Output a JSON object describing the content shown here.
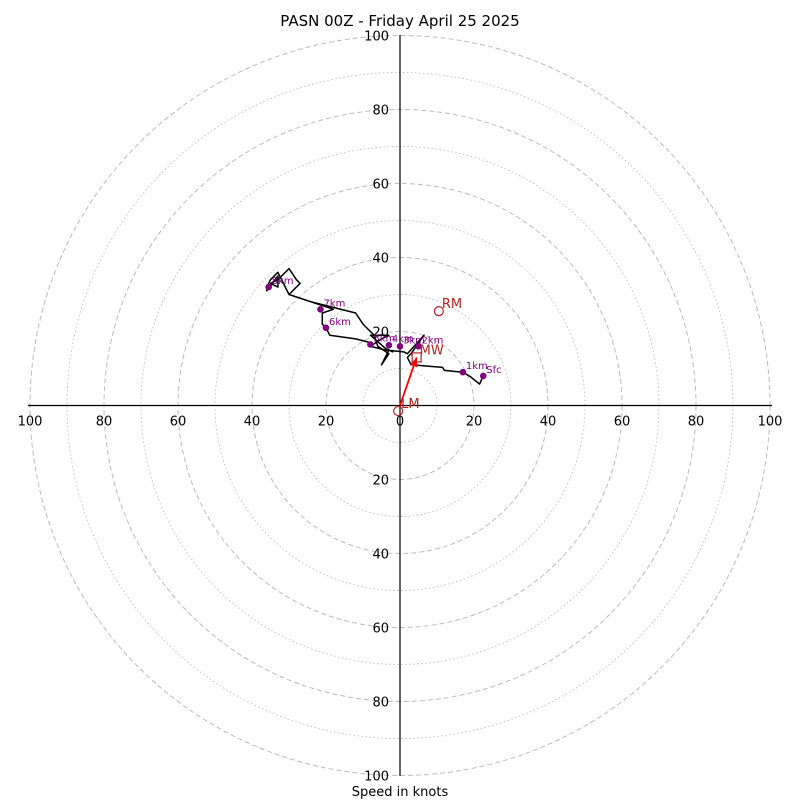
{
  "chart_data": {
    "type": "hodograph",
    "title": "PASN 00Z - Friday April 25 2025",
    "xlabel": "Speed in knots",
    "radius_max": 100,
    "ring_step_major": 20,
    "ring_step_minor": 10,
    "axis_ticks": {
      "right": [
        "20",
        "40",
        "60",
        "80",
        "100"
      ],
      "left": [
        "20",
        "40",
        "60",
        "80",
        "100"
      ],
      "top": [
        "20",
        "40",
        "60",
        "80",
        "100"
      ],
      "bottom": [
        "20",
        "40",
        "60",
        "80",
        "100"
      ],
      "origin": "0"
    },
    "colors": {
      "trace": "#000000",
      "height_marker": "#800080",
      "storm_motion": "#b22222",
      "mean_wind_vector": "#ff0000",
      "grid": "#bbbbbb"
    },
    "trace": [
      [
        22.5,
        8
      ],
      [
        21.5,
        5.8
      ],
      [
        19,
        7.8
      ],
      [
        17,
        9
      ],
      [
        12,
        9.5
      ],
      [
        11.5,
        10.3
      ],
      [
        3,
        11
      ],
      [
        2,
        13
      ],
      [
        3,
        14
      ],
      [
        6.5,
        19
      ],
      [
        2,
        14
      ],
      [
        1,
        14.5
      ],
      [
        -4,
        15
      ],
      [
        -8,
        16
      ],
      [
        -5,
        18
      ],
      [
        -3,
        19
      ],
      [
        -8,
        19
      ],
      [
        -4,
        15.5
      ],
      [
        -2,
        14.5
      ],
      [
        -3,
        15
      ],
      [
        -5,
        11
      ],
      [
        -3,
        14
      ],
      [
        -6,
        16
      ],
      [
        -7,
        19
      ],
      [
        -10,
        22
      ],
      [
        -12,
        25
      ],
      [
        -24,
        28
      ],
      [
        -30,
        30
      ],
      [
        -33,
        36
      ],
      [
        -35,
        34
      ],
      [
        -36,
        32
      ],
      [
        -36,
        31
      ],
      [
        -33,
        35
      ],
      [
        -33,
        32
      ],
      [
        -35,
        33
      ],
      [
        -33,
        34
      ],
      [
        -30,
        37
      ],
      [
        -28,
        34
      ],
      [
        -27,
        33
      ],
      [
        -30,
        30
      ],
      [
        -21,
        27
      ],
      [
        -18,
        26
      ],
      [
        -21,
        25
      ],
      [
        -21,
        22
      ],
      [
        -20,
        21
      ],
      [
        -19,
        19
      ],
      [
        -12,
        18
      ],
      [
        -8,
        17
      ]
    ],
    "height_markers": [
      {
        "label": "Sfc",
        "x": 22.5,
        "y": 8
      },
      {
        "label": "1km",
        "x": 17,
        "y": 9
      },
      {
        "label": "2km",
        "x": 5,
        "y": 16
      },
      {
        "label": "3km",
        "x": 0,
        "y": 16
      },
      {
        "label": "4km",
        "x": -3,
        "y": 16.3
      },
      {
        "label": "5km",
        "x": -8,
        "y": 16.5
      },
      {
        "label": "6km",
        "x": -20,
        "y": 21
      },
      {
        "label": "7km",
        "x": -21.5,
        "y": 26
      },
      {
        "label": "8km",
        "x": -35.5,
        "y": 32
      }
    ],
    "storm_motion": [
      {
        "label": "RM",
        "x": 10.5,
        "y": 25.5
      },
      {
        "label": "LM",
        "x": -0.5,
        "y": -1.5
      },
      {
        "label": "MW",
        "x": 4.5,
        "y": 13
      }
    ],
    "mean_wind_vector": {
      "x": 4.5,
      "y": 13
    }
  }
}
